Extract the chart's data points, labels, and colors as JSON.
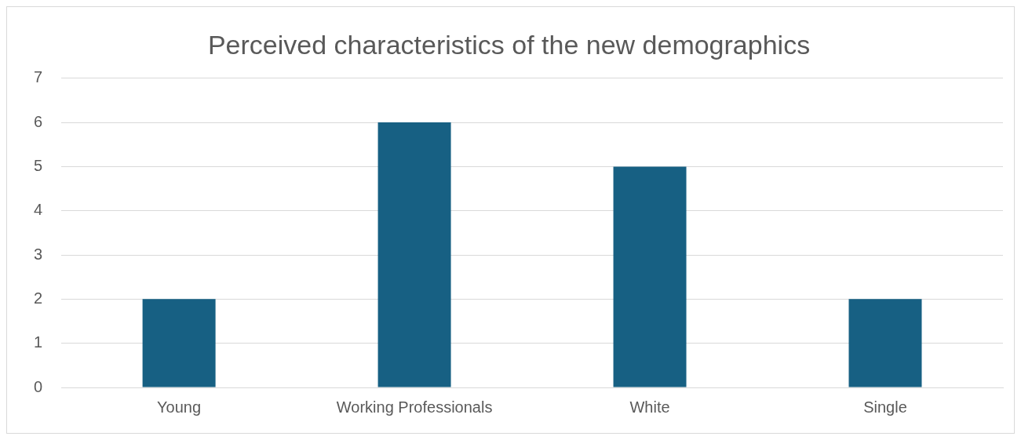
{
  "chart_data": {
    "type": "bar",
    "title": "Perceived characteristics of the new demographics",
    "categories": [
      "Young",
      "Working Professionals",
      "White",
      "Single"
    ],
    "values": [
      2,
      6,
      5,
      2
    ],
    "color": "#176083",
    "ylim": [
      0,
      7
    ],
    "yticks": [
      0,
      1,
      2,
      3,
      4,
      5,
      6,
      7
    ],
    "grid": "y",
    "legend": false
  }
}
